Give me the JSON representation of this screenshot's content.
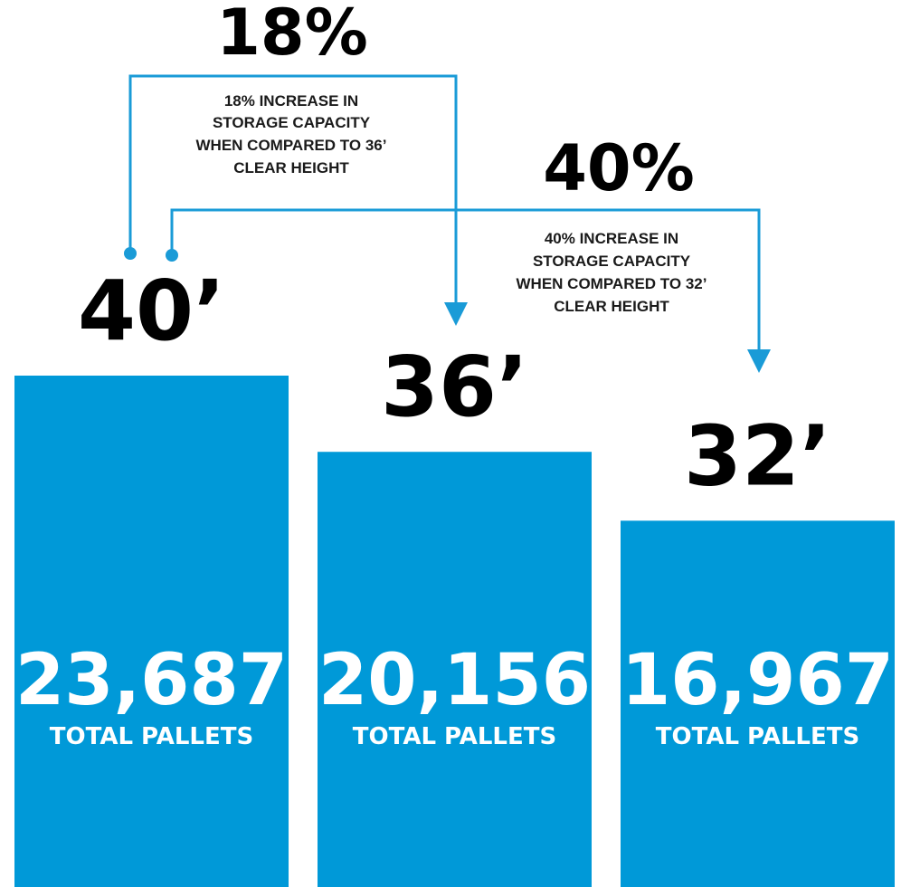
{
  "chart_data": {
    "type": "bar",
    "categories": [
      "40’",
      "36’",
      "32’"
    ],
    "values": [
      23687,
      20156,
      16967
    ],
    "value_labels": [
      "23,687",
      "20,156",
      "16,967"
    ],
    "unit_label": "TOTAL PALLETS",
    "comparisons": [
      {
        "percent_label": "18%",
        "note_lines": [
          "18% INCREASE IN",
          "STORAGE CAPACITY",
          "WHEN COMPARED TO 36’",
          "CLEAR HEIGHT"
        ],
        "from": "40’",
        "to": "36’"
      },
      {
        "percent_label": "40%",
        "note_lines": [
          "40% INCREASE IN",
          "STORAGE CAPACITY",
          "WHEN COMPARED TO 32’",
          "CLEAR HEIGHT"
        ],
        "from": "40’",
        "to": "32’"
      }
    ],
    "grid": false,
    "legend": "none"
  },
  "colors": {
    "bar": "#0099d8",
    "connector": "#1a9bd7",
    "text": "#000000"
  }
}
